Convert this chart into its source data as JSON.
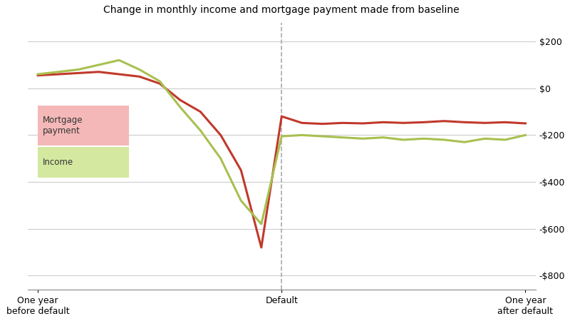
{
  "title": "Change in monthly income and mortgage payment made from baseline",
  "xlabels": [
    "One year\nafter default",
    "Default",
    "One year\nbefore default"
  ],
  "yticks": [
    -800,
    -600,
    -400,
    -200,
    0,
    200
  ],
  "yticklabels": [
    "-$800",
    "-$600",
    "-$400",
    "-$200",
    "$0",
    "$200"
  ],
  "ylim": [
    -860,
    280
  ],
  "background_color": "#ffffff",
  "grid_color": "#cccccc",
  "dashed_line_color": "#aaaaaa",
  "mortgage_color": "#c0392b",
  "income_color": "#a8c050",
  "mortgage_label": "Mortgage\npayment",
  "income_label": "Income",
  "mortgage_label_bg": "#f5b8b8",
  "income_label_bg": "#d4e8a0",
  "n_points": 25,
  "default_index": 12,
  "mortgage_data": [
    -150,
    -145,
    -148,
    -145,
    -140,
    -145,
    -148,
    -145,
    -150,
    -148,
    -152,
    -148,
    -120,
    -680,
    -350,
    -200,
    -100,
    -50,
    20,
    50,
    60,
    70,
    65,
    60,
    55
  ],
  "income_data": [
    -200,
    -220,
    -215,
    -230,
    -220,
    -215,
    -220,
    -210,
    -215,
    -210,
    -205,
    -200,
    -205,
    -580,
    -480,
    -300,
    -180,
    -80,
    30,
    80,
    120,
    100,
    80,
    70,
    60
  ]
}
